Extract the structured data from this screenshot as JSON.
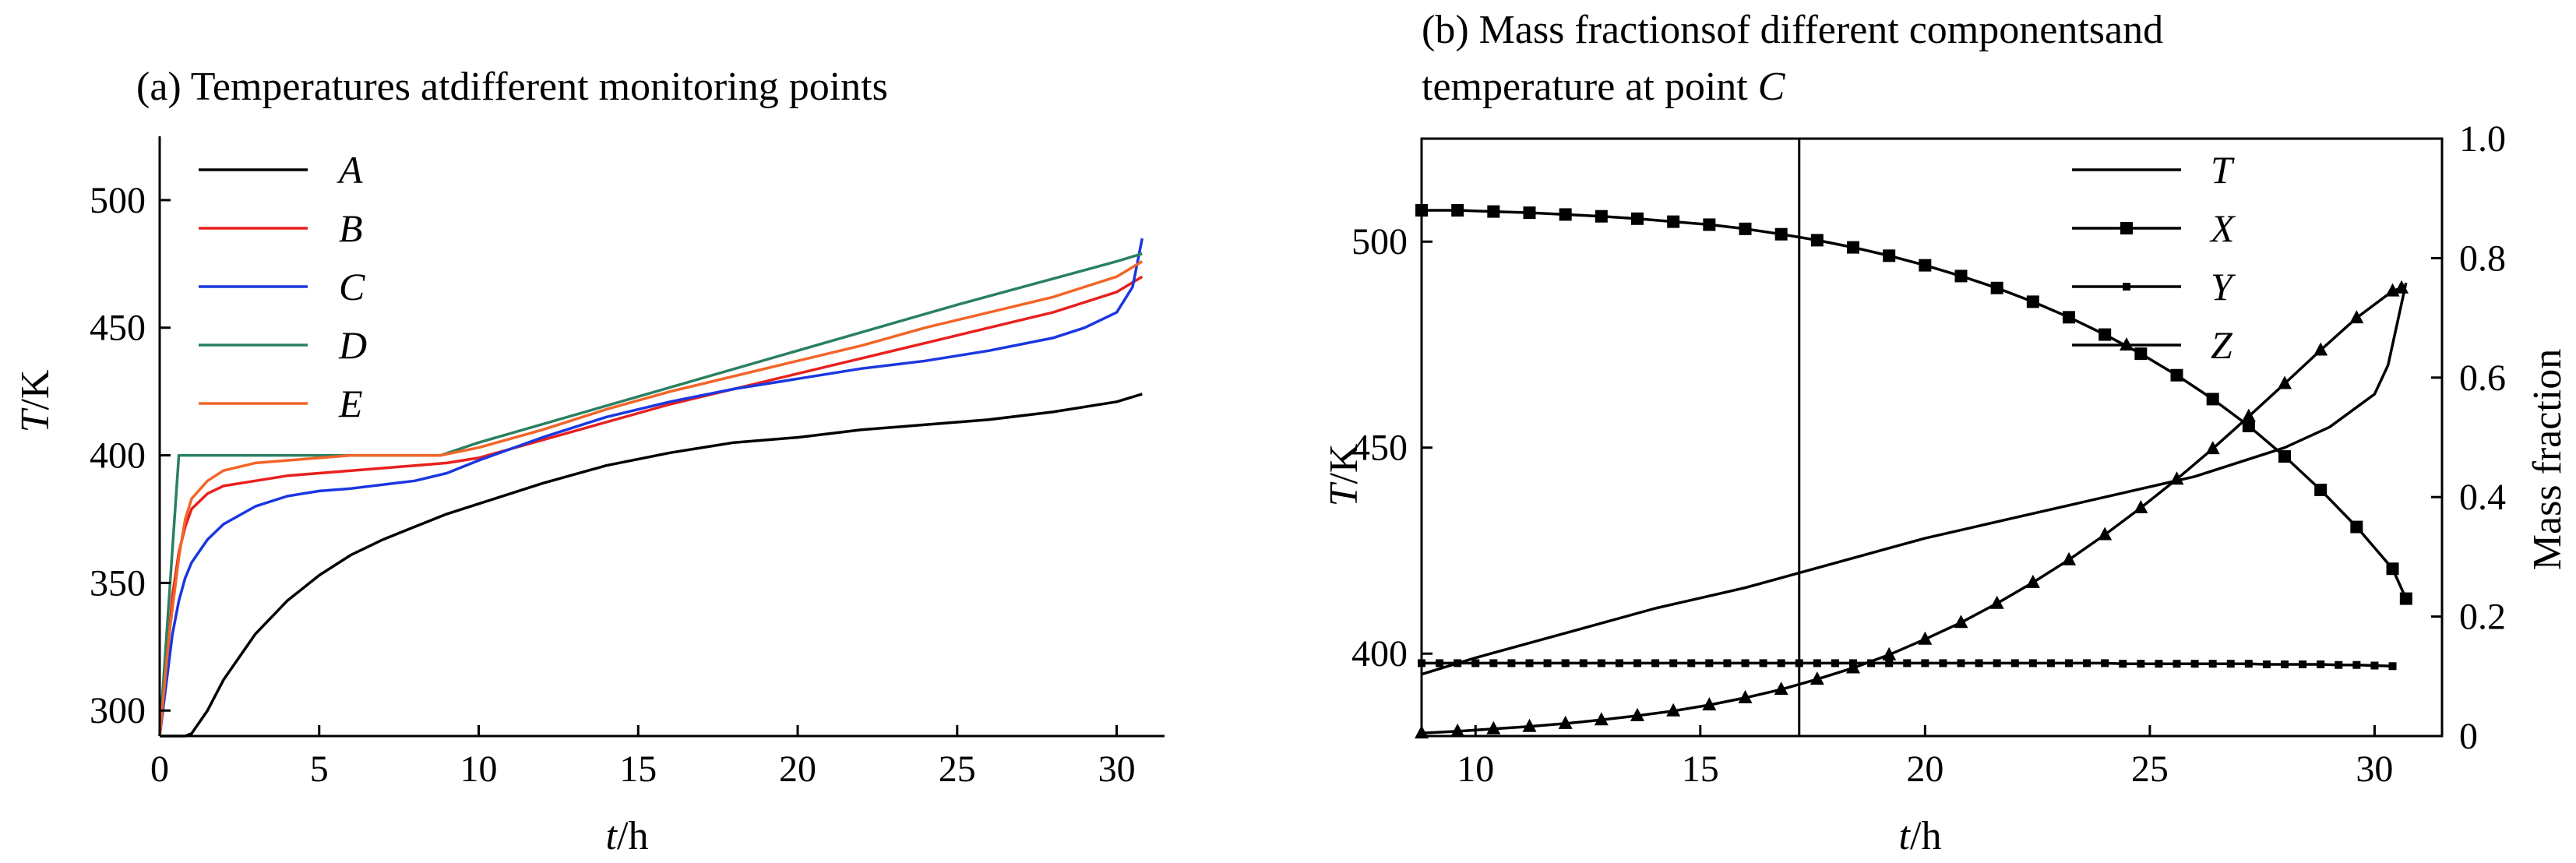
{
  "chart_data": [
    {
      "type": "line",
      "title": "(a) Temperatures atdifferent monitoring points",
      "xlabel_var": "t",
      "xlabel_unit": "/h",
      "ylabel_var": "T",
      "ylabel_unit": "/K",
      "xlim": [
        0,
        31.5
      ],
      "ylim": [
        290,
        525
      ],
      "xticks": [
        0,
        5,
        10,
        15,
        20,
        25,
        30
      ],
      "yticks": [
        300,
        350,
        400,
        450,
        500
      ],
      "legend_position": "top-left",
      "series": [
        {
          "name": "A",
          "color": "#000000",
          "x": [
            0,
            0.8,
            1,
            1.5,
            2,
            3,
            4,
            5,
            6,
            7,
            8,
            9,
            10,
            12,
            14,
            16,
            18,
            20,
            22,
            24,
            26,
            28,
            30,
            30.8
          ],
          "y": [
            290,
            290,
            291,
            300,
            312,
            330,
            343,
            353,
            361,
            367,
            372,
            377,
            381,
            389,
            396,
            401,
            405,
            407,
            410,
            412,
            414,
            417,
            421,
            424
          ]
        },
        {
          "name": "B",
          "color": "#e8201e",
          "x": [
            0,
            0.2,
            0.4,
            0.6,
            0.8,
            1,
            1.5,
            2,
            3,
            4,
            5,
            6,
            8,
            9,
            10,
            12,
            14,
            16,
            18,
            20,
            22,
            24,
            26,
            28,
            30,
            30.8
          ],
          "y": [
            290,
            315,
            345,
            362,
            372,
            379,
            385,
            388,
            390,
            392,
            393,
            394,
            396,
            397,
            399,
            406,
            413,
            420,
            426,
            432,
            438,
            444,
            450,
            456,
            464,
            470
          ]
        },
        {
          "name": "C",
          "color": "#1a37e0",
          "x": [
            0,
            0.2,
            0.4,
            0.6,
            0.8,
            1,
            1.5,
            2,
            3,
            4,
            5,
            6,
            8,
            9,
            10,
            12,
            14,
            16,
            18,
            20,
            22,
            24,
            26,
            28,
            29,
            30,
            30.5,
            30.8
          ],
          "y": [
            290,
            310,
            330,
            343,
            352,
            358,
            367,
            373,
            380,
            384,
            386,
            387,
            390,
            393,
            398,
            407,
            415,
            421,
            426,
            430,
            434,
            437,
            441,
            446,
            450,
            456,
            466,
            485
          ]
        },
        {
          "name": "D",
          "color": "#2a8060",
          "x": [
            0,
            0.6,
            0.8,
            5,
            8.8,
            10,
            15,
            20,
            25,
            30,
            30.8
          ],
          "y": [
            290,
            400,
            400,
            400,
            400,
            405,
            423,
            441,
            459,
            476,
            479
          ]
        },
        {
          "name": "E",
          "color": "#f26528",
          "x": [
            0,
            0.3,
            0.6,
            0.8,
            1,
            1.5,
            2,
            3,
            4,
            5,
            6,
            8,
            8.8,
            10,
            12,
            14,
            16,
            18,
            20,
            22,
            24,
            26,
            28,
            30,
            30.8
          ],
          "y": [
            290,
            330,
            360,
            375,
            383,
            390,
            394,
            397,
            398,
            399,
            400,
            400,
            400,
            403,
            410,
            418,
            425,
            431,
            437,
            443,
            450,
            456,
            462,
            470,
            476
          ]
        }
      ]
    },
    {
      "type": "line",
      "title_line1": "(b) Mass fractionsof different componentsand",
      "title_line2": "temperature at point ",
      "title_point": "C",
      "xlabel_var": "t",
      "xlabel_unit": "/h",
      "ylabel_var": "T",
      "ylabel_unit": "/K",
      "y2label": "Mass fraction",
      "xlim": [
        8.8,
        31.5
      ],
      "ylim": [
        380,
        525
      ],
      "y2lim": [
        0,
        1.0
      ],
      "xticks": [
        10,
        15,
        20,
        25,
        30
      ],
      "yticks": [
        400,
        450,
        500
      ],
      "y2ticks": [
        0,
        0.2,
        0.4,
        0.6,
        0.8,
        1.0
      ],
      "y2ticklabels": [
        "0",
        "0.2",
        "0.4",
        "0.6",
        "0.8",
        "1.0"
      ],
      "vline_x": 17.2,
      "legend_position": "top-right",
      "series": [
        {
          "name": "T",
          "axis": "left",
          "marker": "none",
          "x": [
            8.8,
            10,
            12,
            14,
            16,
            18,
            20,
            22,
            24,
            26,
            28,
            29,
            30,
            30.3,
            30.5,
            30.7
          ],
          "y": [
            395,
            399,
            405,
            411,
            416,
            422,
            428,
            433,
            438,
            443,
            450,
            455,
            463,
            470,
            480,
            490
          ]
        },
        {
          "name": "X",
          "axis": "right",
          "marker": "square",
          "x": [
            8.8,
            9.6,
            10.4,
            11.2,
            12,
            12.8,
            13.6,
            14.4,
            15.2,
            16,
            16.8,
            17.6,
            18.4,
            19.2,
            20,
            20.8,
            21.6,
            22.4,
            23.2,
            24,
            24.8,
            25.6,
            26.4,
            27.2,
            28,
            28.8,
            29.6,
            30.4,
            30.7
          ],
          "y": [
            0.88,
            0.88,
            0.878,
            0.876,
            0.873,
            0.87,
            0.866,
            0.861,
            0.856,
            0.849,
            0.84,
            0.83,
            0.818,
            0.804,
            0.788,
            0.77,
            0.75,
            0.727,
            0.701,
            0.672,
            0.64,
            0.604,
            0.564,
            0.519,
            0.468,
            0.412,
            0.35,
            0.28,
            0.23
          ]
        },
        {
          "name": "Y",
          "axis": "right",
          "marker": "smallsquare",
          "x": [
            8.8,
            9.2,
            9.6,
            10,
            10.4,
            10.8,
            11.2,
            11.6,
            12,
            12.4,
            12.8,
            13.2,
            13.6,
            14,
            14.4,
            14.8,
            15.2,
            15.6,
            16,
            16.4,
            16.8,
            17.2,
            17.6,
            18,
            18.4,
            18.8,
            19.2,
            19.6,
            20,
            20.4,
            20.8,
            21.2,
            21.6,
            22,
            22.4,
            22.8,
            23.2,
            23.6,
            24,
            24.4,
            24.8,
            25.2,
            25.6,
            26,
            26.4,
            26.8,
            27.2,
            27.6,
            28,
            28.4,
            28.8,
            29.2,
            29.6,
            30,
            30.4
          ],
          "y": [
            0.122,
            0.122,
            0.122,
            0.122,
            0.122,
            0.122,
            0.122,
            0.122,
            0.122,
            0.122,
            0.122,
            0.122,
            0.122,
            0.122,
            0.122,
            0.122,
            0.122,
            0.122,
            0.122,
            0.122,
            0.122,
            0.122,
            0.122,
            0.122,
            0.122,
            0.122,
            0.122,
            0.122,
            0.122,
            0.122,
            0.122,
            0.122,
            0.122,
            0.122,
            0.122,
            0.122,
            0.122,
            0.122,
            0.122,
            0.121,
            0.121,
            0.121,
            0.121,
            0.121,
            0.121,
            0.121,
            0.121,
            0.12,
            0.12,
            0.12,
            0.12,
            0.119,
            0.119,
            0.118,
            0.117
          ]
        },
        {
          "name": "Z",
          "axis": "right",
          "marker": "triangle",
          "x": [
            8.8,
            9.6,
            10.4,
            11.2,
            12,
            12.8,
            13.6,
            14.4,
            15.2,
            16,
            16.8,
            17.6,
            18.4,
            19.2,
            20,
            20.8,
            21.6,
            22.4,
            23.2,
            24,
            24.8,
            25.6,
            26.4,
            27.2,
            28,
            28.8,
            29.6,
            30.4,
            30.6
          ],
          "y": [
            0.005,
            0.008,
            0.012,
            0.016,
            0.021,
            0.027,
            0.034,
            0.042,
            0.052,
            0.064,
            0.078,
            0.095,
            0.114,
            0.136,
            0.162,
            0.19,
            0.222,
            0.257,
            0.295,
            0.337,
            0.382,
            0.43,
            0.481,
            0.535,
            0.59,
            0.646,
            0.7,
            0.745,
            0.75
          ]
        }
      ]
    }
  ]
}
